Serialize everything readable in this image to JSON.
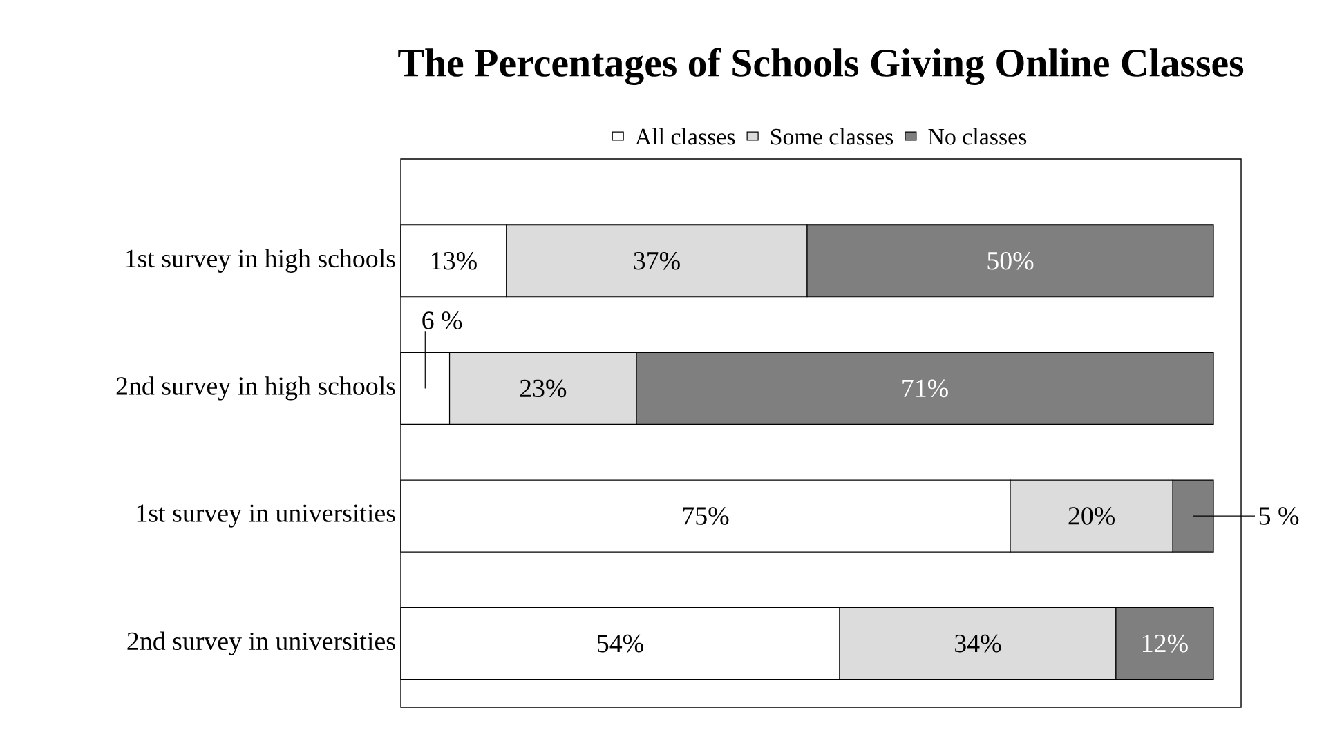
{
  "chart_data": {
    "type": "bar",
    "orientation": "horizontal",
    "stacked": true,
    "title": "The Percentages of Schools Giving Online Classes",
    "categories": [
      "1st survey in high schools",
      "2nd survey in high schools",
      "1st survey in universities",
      "2nd survey in universities"
    ],
    "series": [
      {
        "name": "All classes",
        "color": "#ffffff",
        "values": [
          13,
          6,
          75,
          54
        ],
        "value_labels": [
          "13%",
          "6 %",
          "75%",
          "54%"
        ]
      },
      {
        "name": "Some classes",
        "color": "#dcdcdc",
        "values": [
          37,
          23,
          20,
          34
        ],
        "value_labels": [
          "37%",
          "23%",
          "20%",
          "34%"
        ]
      },
      {
        "name": "No classes",
        "color": "#7f7f80",
        "values": [
          50,
          71,
          5,
          12
        ],
        "value_labels": [
          "50%",
          "71%",
          "5 %",
          "12%"
        ]
      }
    ],
    "xlim": [
      0,
      100
    ],
    "legend": "top",
    "tick_labels": "y"
  }
}
